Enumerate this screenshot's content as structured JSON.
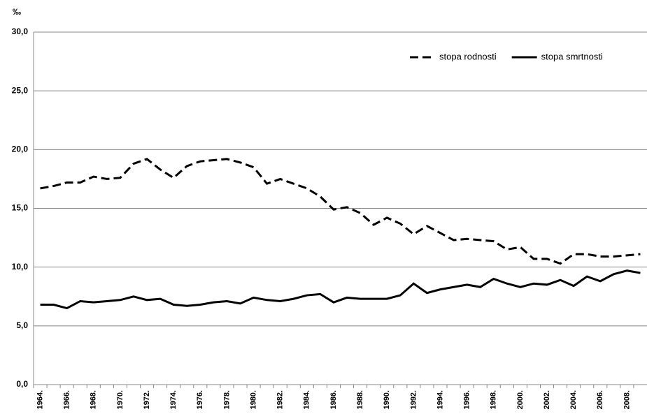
{
  "chart_data": {
    "type": "line",
    "y_label": "‰",
    "categories": [
      "1964.",
      null,
      "1966.",
      null,
      "1968.",
      null,
      "1970.",
      null,
      "1972.",
      null,
      "1974.",
      null,
      "1976.",
      null,
      "1978.",
      null,
      "1980.",
      null,
      "1982.",
      null,
      "1984.",
      null,
      "1986.",
      null,
      "1988.",
      null,
      "1990.",
      null,
      "1992.",
      null,
      "1994.",
      null,
      "1996.",
      null,
      "1998.",
      null,
      "2000.",
      null,
      "2002.",
      null,
      "2004.",
      null,
      "2006.",
      null,
      "2008.",
      null
    ],
    "series": [
      {
        "name": "stopa rodnosti",
        "color": "#000000",
        "style": "dashed",
        "values": [
          16.7,
          16.9,
          17.2,
          17.2,
          17.7,
          17.5,
          17.6,
          18.8,
          19.2,
          18.3,
          17.6,
          18.6,
          19.0,
          19.1,
          19.2,
          18.9,
          18.5,
          17.1,
          17.5,
          17.1,
          16.7,
          16.0,
          14.9,
          15.1,
          14.6,
          13.6,
          14.2,
          13.7,
          12.8,
          13.5,
          12.9,
          12.3,
          12.4,
          12.3,
          12.2,
          11.5,
          11.7,
          10.7,
          10.7,
          10.3,
          11.1,
          11.1,
          10.9,
          10.9,
          11.0,
          11.1
        ]
      },
      {
        "name": "stopa smrtnosti",
        "color": "#000000",
        "style": "solid",
        "values": [
          6.8,
          6.8,
          6.5,
          7.1,
          7.0,
          7.1,
          7.2,
          7.5,
          7.2,
          7.3,
          6.8,
          6.7,
          6.8,
          7.0,
          7.1,
          6.9,
          7.4,
          7.2,
          7.1,
          7.3,
          7.6,
          7.7,
          7.0,
          7.4,
          7.3,
          7.3,
          7.3,
          7.6,
          8.6,
          7.8,
          8.1,
          8.3,
          8.5,
          8.3,
          9.0,
          8.6,
          8.3,
          8.6,
          8.5,
          8.9,
          8.4,
          9.2,
          8.8,
          9.4,
          9.7,
          9.5
        ]
      }
    ],
    "ylim": [
      0,
      30
    ],
    "yticks": [
      {
        "value": 0,
        "label": "0,0"
      },
      {
        "value": 5,
        "label": "5,0"
      },
      {
        "value": 10,
        "label": "10,0"
      },
      {
        "value": 15,
        "label": "15,0"
      },
      {
        "value": 20,
        "label": "20,0"
      },
      {
        "value": 25,
        "label": "25,0"
      },
      {
        "value": 30,
        "label": "30,0"
      }
    ],
    "grid": true,
    "legend": "top-right"
  }
}
